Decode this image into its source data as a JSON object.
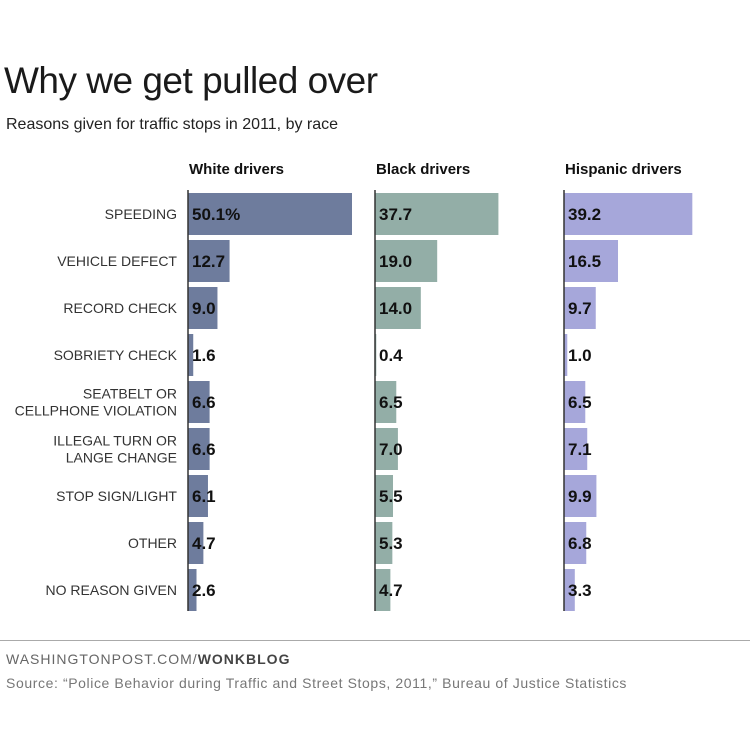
{
  "chart_data": {
    "type": "bar",
    "orientation": "horizontal",
    "title": "Why we get pulled over",
    "subtitle": "Reasons given for traffic stops in 2011, by race",
    "categories": [
      [
        "SPEEDING"
      ],
      [
        "VEHICLE DEFECT"
      ],
      [
        "RECORD CHECK"
      ],
      [
        "SOBRIETY CHECK"
      ],
      [
        "SEATBELT OR",
        "CELLPHONE VIOLATION"
      ],
      [
        "ILLEGAL TURN OR",
        "LANGE CHANGE"
      ],
      [
        "STOP SIGN/LIGHT"
      ],
      [
        "OTHER"
      ],
      [
        "NO REASON GIVEN"
      ]
    ],
    "series": [
      {
        "name": "White drivers",
        "color": "#6e7c9d",
        "values": [
          50.1,
          12.7,
          9.0,
          1.6,
          6.6,
          6.6,
          6.1,
          4.7,
          2.6
        ],
        "labels": [
          "50.1%",
          "12.7",
          "9.0",
          "1.6",
          "6.6",
          "6.6",
          "6.1",
          "4.7",
          "2.6"
        ]
      },
      {
        "name": "Black drivers",
        "color": "#93aea7",
        "values": [
          37.7,
          19.0,
          14.0,
          0.4,
          6.5,
          7.0,
          5.5,
          5.3,
          4.7
        ],
        "labels": [
          "37.7",
          "19.0",
          "14.0",
          "0.4",
          "6.5",
          "7.0",
          "5.5",
          "5.3",
          "4.7"
        ]
      },
      {
        "name": "Hispanic drivers",
        "color": "#a6a7da",
        "values": [
          39.2,
          16.5,
          9.7,
          1.0,
          6.5,
          7.1,
          9.9,
          6.8,
          3.3
        ],
        "labels": [
          "39.2",
          "16.5",
          "9.7",
          "1.0",
          "6.5",
          "7.1",
          "9.9",
          "6.8",
          "3.3"
        ]
      }
    ],
    "grid": false,
    "legend": "none",
    "axis_color": "#333333"
  },
  "footer": {
    "credit_prefix": "WASHINGTONPOST.COM/",
    "credit_bold": "WONKBLOG",
    "source": "Source: “Police Behavior during Traffic and Street Stops, 2011,” Bureau of Justice Statistics"
  }
}
